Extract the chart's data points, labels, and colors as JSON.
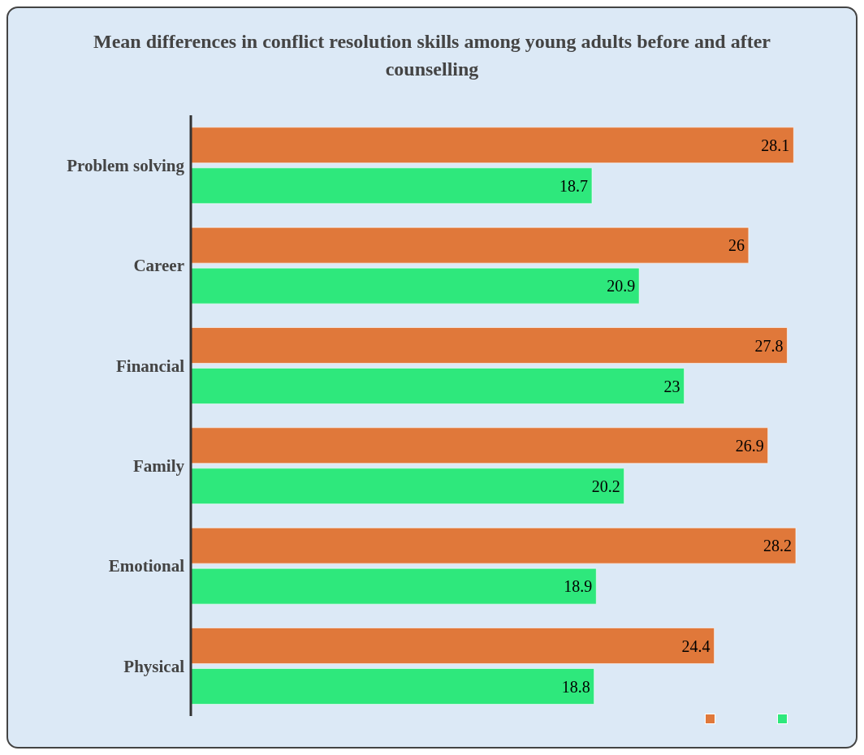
{
  "chart_data": {
    "type": "bar",
    "orientation": "horizontal",
    "title": "Mean differences in conflict resolution skills among young adults before and after counselling",
    "categories": [
      "Problem solving",
      "Career",
      "Financial",
      "Family",
      "Emotional",
      "Physical"
    ],
    "series": [
      {
        "color": "#e0783a",
        "values": [
          28.1,
          26,
          27.8,
          26.9,
          28.2,
          24.4
        ]
      },
      {
        "color": "#2ee87c",
        "values": [
          18.7,
          20.9,
          23,
          20.2,
          18.9,
          18.8
        ]
      }
    ],
    "data_labels": true,
    "grid": false
  }
}
